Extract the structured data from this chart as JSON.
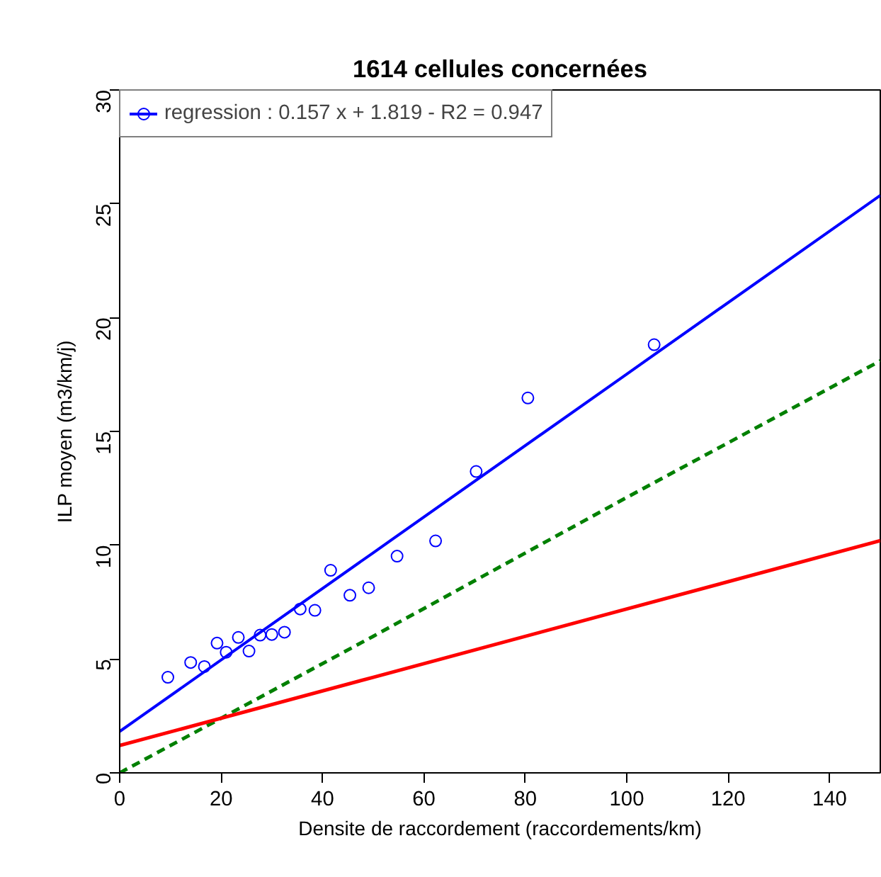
{
  "chart_data": {
    "type": "scatter",
    "title": "1614 cellules concernées",
    "xlabel": "Densite de raccordement (raccordements/km)",
    "ylabel": "ILP moyen (m3/km/j)",
    "x": [
      9.5,
      14.0,
      16.7,
      19.2,
      21.0,
      23.4,
      25.5,
      27.7,
      30.0,
      32.5,
      35.6,
      38.5,
      41.6,
      45.4,
      49.1,
      54.7,
      62.3,
      70.3,
      80.5,
      105.4
    ],
    "series": [
      {
        "color": "#0000ff",
        "marker": "circle",
        "values": [
          4.2,
          4.85,
          4.67,
          5.7,
          5.3,
          5.95,
          5.35,
          6.05,
          6.08,
          6.18,
          7.2,
          7.14,
          8.9,
          7.8,
          8.13,
          9.52,
          10.19,
          13.24,
          16.47,
          18.81
        ]
      },
      {
        "type": "line",
        "name": "regression : 0.157 x + 1.819 - R2 = 0.947",
        "color": "#0000ff",
        "line_style": "solid",
        "x": [
          0,
          50,
          100,
          150
        ],
        "values": [
          1.82,
          9.67,
          17.52,
          25.37
        ]
      },
      {
        "type": "line",
        "color": "#008000",
        "line_style": "dashed",
        "x": [
          0,
          50,
          100,
          150
        ],
        "values": [
          0,
          6.0,
          12.1,
          18.1
        ]
      },
      {
        "type": "line",
        "color": "#ff0000",
        "line_style": "solid",
        "x": [
          0,
          50,
          100,
          150
        ],
        "values": [
          1.2,
          4.2,
          7.2,
          10.2
        ]
      }
    ],
    "xlim": [
      0,
      150
    ],
    "ylim": [
      0,
      30
    ],
    "xticks": [
      0,
      20,
      40,
      60,
      80,
      100,
      120,
      140
    ],
    "yticks": [
      0,
      5,
      10,
      15,
      20,
      25,
      30
    ],
    "grid": false,
    "legend": "top left"
  }
}
